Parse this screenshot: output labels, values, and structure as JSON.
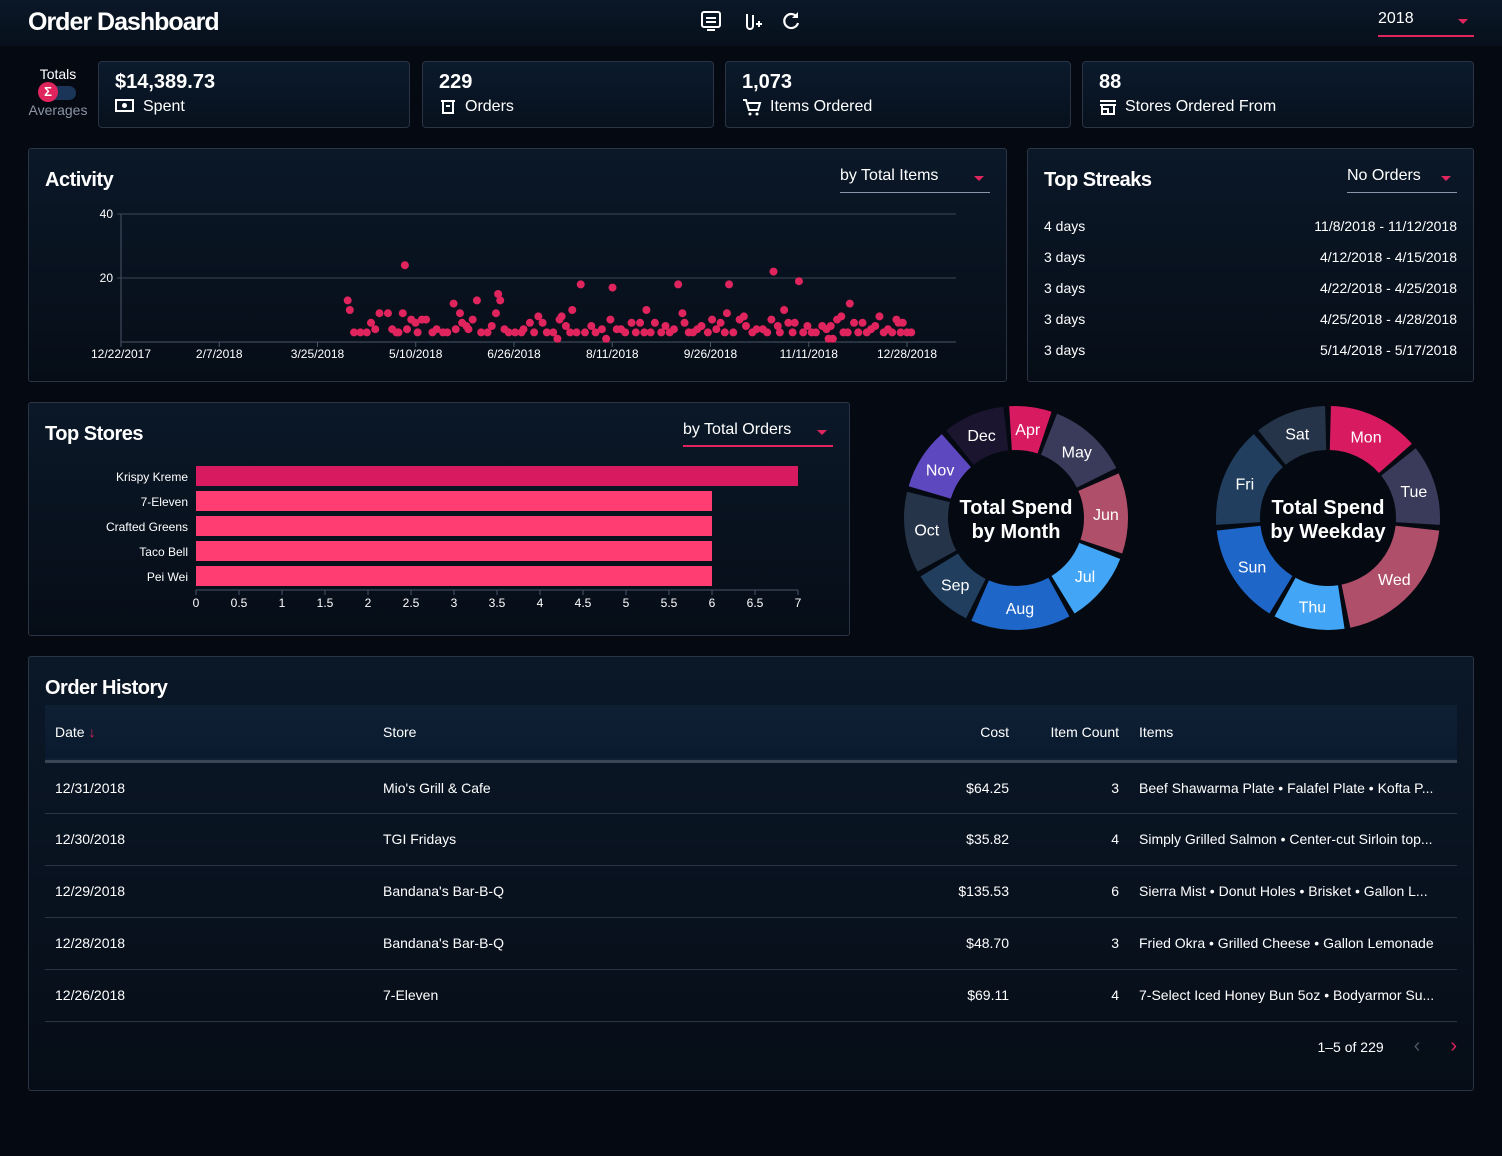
{
  "header": {
    "title": "Order Dashboard",
    "year": "2018"
  },
  "toggle": {
    "top": "Totals",
    "bottom": "Averages",
    "symbol": "Σ"
  },
  "cards": [
    {
      "value": "$14,389.73",
      "label": "Spent",
      "icon": "money-icon"
    },
    {
      "value": "229",
      "label": "Orders",
      "icon": "bag-icon"
    },
    {
      "value": "1,073",
      "label": "Items Ordered",
      "icon": "cart-icon"
    },
    {
      "value": "88",
      "label": "Stores Ordered From",
      "icon": "store-icon"
    }
  ],
  "activity": {
    "title": "Activity",
    "dropdown": "by Total Items"
  },
  "streaks": {
    "title": "Top Streaks",
    "dropdown": "No Orders",
    "rows": [
      {
        "len": "4 days",
        "range": "11/8/2018 - 11/12/2018"
      },
      {
        "len": "3 days",
        "range": "4/12/2018 - 4/15/2018"
      },
      {
        "len": "3 days",
        "range": "4/22/2018 - 4/25/2018"
      },
      {
        "len": "3 days",
        "range": "4/25/2018 - 4/28/2018"
      },
      {
        "len": "3 days",
        "range": "5/14/2018 - 5/17/2018"
      }
    ]
  },
  "stores": {
    "title": "Top Stores",
    "dropdown": "by Total Orders"
  },
  "chart_data": [
    {
      "type": "scatter",
      "title": "Activity",
      "ylim": [
        0,
        40
      ],
      "yticks": [
        "20",
        "40"
      ],
      "xticks": [
        "12/22/2017",
        "2/7/2018",
        "3/25/2018",
        "5/10/2018",
        "6/26/2018",
        "8/11/2018",
        "9/26/2018",
        "11/11/2018",
        "12/28/2018"
      ],
      "x_unit": "days since 12/22/2017",
      "xlim": [
        0,
        380
      ],
      "color": "#e0245e",
      "points": [
        [
          107,
          13
        ],
        [
          108,
          10
        ],
        [
          110,
          3
        ],
        [
          113,
          3
        ],
        [
          116,
          3
        ],
        [
          118,
          6
        ],
        [
          120,
          4
        ],
        [
          122,
          9
        ],
        [
          126,
          9
        ],
        [
          128,
          4
        ],
        [
          130,
          3
        ],
        [
          131,
          3
        ],
        [
          133,
          9
        ],
        [
          134,
          24
        ],
        [
          135,
          4
        ],
        [
          137,
          7
        ],
        [
          139,
          6
        ],
        [
          140,
          3
        ],
        [
          142,
          7
        ],
        [
          144,
          7
        ],
        [
          147,
          3
        ],
        [
          149,
          4
        ],
        [
          152,
          3
        ],
        [
          154,
          3
        ],
        [
          157,
          12
        ],
        [
          158,
          4
        ],
        [
          160,
          9
        ],
        [
          161,
          6
        ],
        [
          163,
          5
        ],
        [
          164,
          4
        ],
        [
          166,
          7
        ],
        [
          168,
          13
        ],
        [
          170,
          3
        ],
        [
          173,
          3
        ],
        [
          175,
          5
        ],
        [
          177,
          9
        ],
        [
          178,
          15
        ],
        [
          179,
          13
        ],
        [
          181,
          4
        ],
        [
          183,
          3
        ],
        [
          186,
          3
        ],
        [
          189,
          3
        ],
        [
          190,
          4
        ],
        [
          193,
          6
        ],
        [
          195,
          3
        ],
        [
          197,
          8
        ],
        [
          199,
          6
        ],
        [
          201,
          3
        ],
        [
          204,
          3
        ],
        [
          206,
          1
        ],
        [
          207,
          7
        ],
        [
          208,
          8
        ],
        [
          210,
          5
        ],
        [
          212,
          3
        ],
        [
          213,
          10
        ],
        [
          215,
          3
        ],
        [
          217,
          18
        ],
        [
          219,
          3
        ],
        [
          222,
          5
        ],
        [
          224,
          3
        ],
        [
          227,
          4
        ],
        [
          229,
          1
        ],
        [
          231,
          7
        ],
        [
          232,
          17
        ],
        [
          234,
          4
        ],
        [
          236,
          4
        ],
        [
          238,
          3
        ],
        [
          241,
          6
        ],
        [
          243,
          3
        ],
        [
          245,
          6
        ],
        [
          247,
          3
        ],
        [
          248,
          10
        ],
        [
          250,
          3
        ],
        [
          252,
          6
        ],
        [
          255,
          3
        ],
        [
          257,
          5
        ],
        [
          259,
          3
        ],
        [
          261,
          4
        ],
        [
          263,
          18
        ],
        [
          265,
          9
        ],
        [
          266,
          6
        ],
        [
          268,
          3
        ],
        [
          270,
          3
        ],
        [
          272,
          4
        ],
        [
          274,
          5
        ],
        [
          277,
          3
        ],
        [
          279,
          7
        ],
        [
          281,
          4
        ],
        [
          283,
          6
        ],
        [
          285,
          3
        ],
        [
          286,
          9
        ],
        [
          287,
          18
        ],
        [
          289,
          3
        ],
        [
          292,
          7
        ],
        [
          294,
          8
        ],
        [
          295,
          5
        ],
        [
          298,
          3
        ],
        [
          300,
          4
        ],
        [
          303,
          4
        ],
        [
          305,
          3
        ],
        [
          307,
          7
        ],
        [
          308,
          22
        ],
        [
          310,
          5
        ],
        [
          311,
          3
        ],
        [
          313,
          10
        ],
        [
          315,
          6
        ],
        [
          317,
          3
        ],
        [
          318,
          6
        ],
        [
          320,
          19
        ],
        [
          322,
          3
        ],
        [
          324,
          5
        ],
        [
          326,
          3
        ],
        [
          328,
          3
        ],
        [
          331,
          5
        ],
        [
          333,
          4
        ],
        [
          334,
          1
        ],
        [
          335,
          5
        ],
        [
          336,
          1
        ],
        [
          338,
          7
        ],
        [
          340,
          8
        ],
        [
          341,
          3
        ],
        [
          343,
          3
        ],
        [
          344,
          12
        ],
        [
          346,
          6
        ],
        [
          348,
          3
        ],
        [
          350,
          6
        ],
        [
          352,
          3
        ],
        [
          354,
          4
        ],
        [
          356,
          5
        ],
        [
          358,
          8
        ],
        [
          360,
          3
        ],
        [
          362,
          4
        ],
        [
          364,
          3
        ],
        [
          366,
          7
        ],
        [
          367,
          6
        ],
        [
          368,
          3
        ],
        [
          369,
          6
        ],
        [
          371,
          3
        ],
        [
          373,
          3
        ]
      ]
    },
    {
      "type": "bar",
      "title": "Top Stores",
      "orientation": "horizontal",
      "categories": [
        "Krispy Kreme",
        "7-Eleven",
        "Crafted Greens",
        "Taco Bell",
        "Pei Wei"
      ],
      "values": [
        7,
        6,
        6,
        6,
        6
      ],
      "xlim": [
        0,
        7
      ],
      "xticks": [
        "0",
        "0.5",
        "1",
        "1.5",
        "2",
        "2.5",
        "3",
        "3.5",
        "4",
        "4.5",
        "5",
        "5.5",
        "6",
        "6.5",
        "7"
      ],
      "colors": [
        "#d81b60",
        "#ff3d73",
        "#ff3d73",
        "#ff3d73",
        "#ff3d73"
      ]
    },
    {
      "type": "pie",
      "title": "Total Spend by Month",
      "labels": [
        "Apr",
        "May",
        "Jun",
        "Jul",
        "Aug",
        "Sep",
        "Oct",
        "Nov",
        "Dec"
      ],
      "values": [
        25,
        45,
        45,
        40,
        55,
        35,
        45,
        35,
        35
      ],
      "colors": [
        "#d81b60",
        "#3a3a5a",
        "#b04f6a",
        "#42a5f5",
        "#1e66c8",
        "#213e5e",
        "#263449",
        "#5e48c0",
        "#1c1530"
      ],
      "center": [
        "Total Spend",
        "by Month"
      ]
    },
    {
      "type": "pie",
      "title": "Total Spend by Weekday",
      "labels": [
        "Mon",
        "Tue",
        "Wed",
        "Thu",
        "Sun",
        "Fri",
        "Sat"
      ],
      "values": [
        50,
        45,
        75,
        40,
        55,
        55,
        40
      ],
      "colors": [
        "#d81b60",
        "#3a3a5a",
        "#b04f6a",
        "#42a5f5",
        "#1e66c8",
        "#213e5e",
        "#263449"
      ],
      "center": [
        "Total Spend",
        "by Weekday"
      ]
    }
  ],
  "history": {
    "title": "Order History",
    "columns": [
      "Date",
      "Store",
      "Cost",
      "Item Count",
      "Items"
    ],
    "rows": [
      [
        "12/31/2018",
        "Mio's Grill & Cafe",
        "$64.25",
        "3",
        "Beef Shawarma Plate • Falafel Plate • Kofta P..."
      ],
      [
        "12/30/2018",
        "TGI Fridays",
        "$35.82",
        "4",
        "Simply Grilled Salmon • Center-cut Sirloin top..."
      ],
      [
        "12/29/2018",
        "Bandana's Bar-B-Q",
        "$135.53",
        "6",
        "Sierra Mist • Donut Holes • Brisket • Gallon L..."
      ],
      [
        "12/28/2018",
        "Bandana's Bar-B-Q",
        "$48.70",
        "3",
        "Fried Okra • Grilled Cheese • Gallon Lemonade"
      ],
      [
        "12/26/2018",
        "7-Eleven",
        "$69.11",
        "4",
        "7-Select Iced Honey Bun 5oz • Bodyarmor Su..."
      ]
    ],
    "pagination": "1–5 of 229"
  }
}
